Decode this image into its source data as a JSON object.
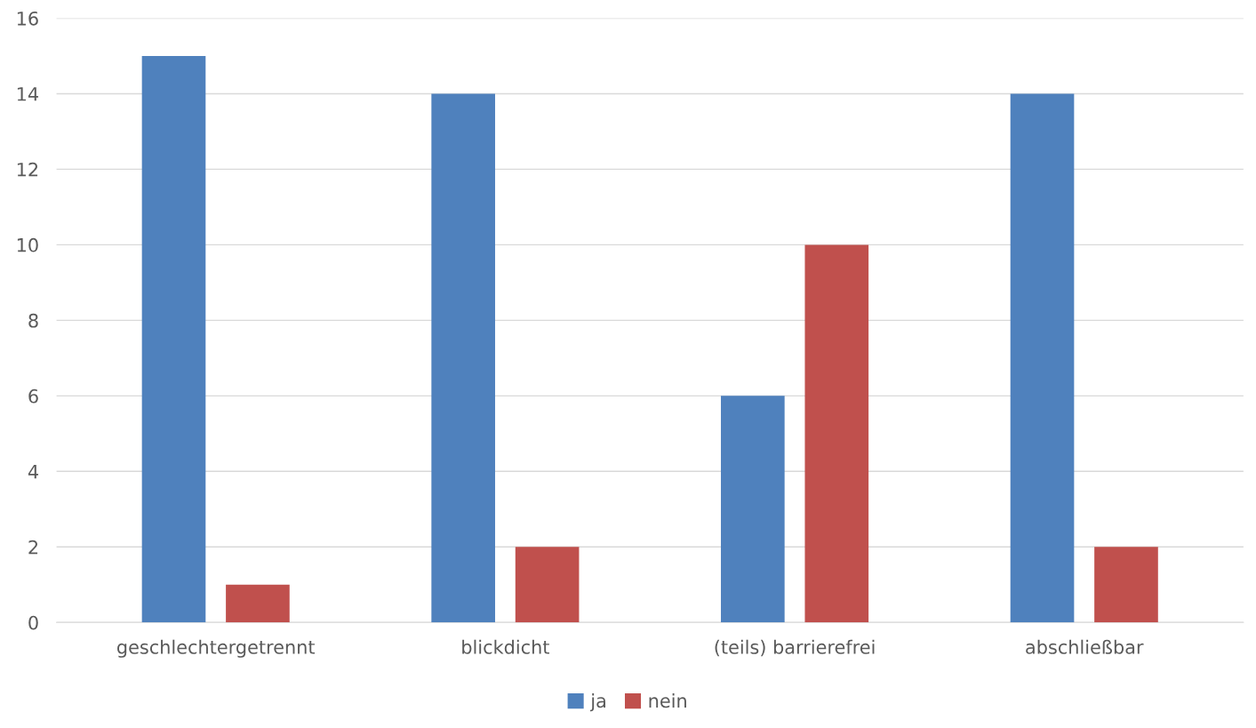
{
  "chart_data": {
    "type": "bar",
    "categories": [
      "geschlechtergetrennt",
      "blickdicht",
      "(teils) barrierefrei",
      "abschließbar"
    ],
    "series": [
      {
        "name": "ja",
        "color": "#4f81bd",
        "values": [
          15,
          14,
          6,
          14
        ]
      },
      {
        "name": "nein",
        "color": "#c0504d",
        "values": [
          1,
          2,
          10,
          2
        ]
      }
    ],
    "ylim": [
      0,
      16
    ],
    "yticks": [
      0,
      2,
      4,
      6,
      8,
      10,
      12,
      14,
      16
    ],
    "grid": "y",
    "legend": "bottom"
  }
}
